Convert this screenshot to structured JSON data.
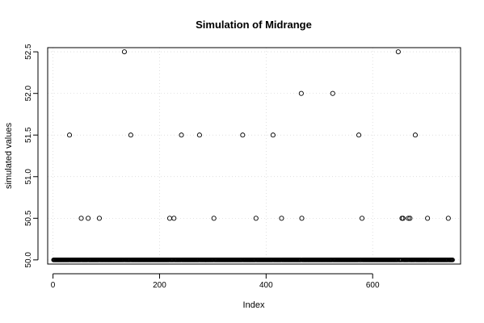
{
  "chart_data": {
    "type": "scatter",
    "title": "Simulation of Midrange",
    "xlabel": "Index",
    "ylabel": "simulated values",
    "xlim": [
      -10,
      765
    ],
    "ylim": [
      49.95,
      52.55
    ],
    "xticks": [
      0,
      200,
      400,
      600
    ],
    "yticks": [
      50.0,
      50.5,
      51.0,
      51.5,
      52.0,
      52.5
    ],
    "ytick_labels": [
      "50.0",
      "50.5",
      "51.0",
      "51.5",
      "52.0",
      "52.5"
    ],
    "grid": true,
    "n_points": 750,
    "baseline_value": 50.0,
    "marker": "open-circle",
    "points": [
      {
        "x": 31,
        "y": 51.5
      },
      {
        "x": 53,
        "y": 50.5
      },
      {
        "x": 66,
        "y": 50.5
      },
      {
        "x": 87,
        "y": 50.5
      },
      {
        "x": 134,
        "y": 52.5
      },
      {
        "x": 146,
        "y": 51.5
      },
      {
        "x": 219,
        "y": 50.5
      },
      {
        "x": 227,
        "y": 50.5
      },
      {
        "x": 241,
        "y": 51.5
      },
      {
        "x": 275,
        "y": 51.5
      },
      {
        "x": 302,
        "y": 50.5
      },
      {
        "x": 356,
        "y": 51.5
      },
      {
        "x": 381,
        "y": 50.5
      },
      {
        "x": 413,
        "y": 51.5
      },
      {
        "x": 429,
        "y": 50.5
      },
      {
        "x": 466,
        "y": 52.0
      },
      {
        "x": 467,
        "y": 50.5
      },
      {
        "x": 525,
        "y": 52.0
      },
      {
        "x": 574,
        "y": 51.5
      },
      {
        "x": 580,
        "y": 50.5
      },
      {
        "x": 648,
        "y": 52.5
      },
      {
        "x": 655,
        "y": 50.5
      },
      {
        "x": 657,
        "y": 50.5
      },
      {
        "x": 667,
        "y": 50.5
      },
      {
        "x": 670,
        "y": 50.5
      },
      {
        "x": 680,
        "y": 51.5
      },
      {
        "x": 703,
        "y": 50.5
      },
      {
        "x": 742,
        "y": 50.5
      }
    ]
  }
}
